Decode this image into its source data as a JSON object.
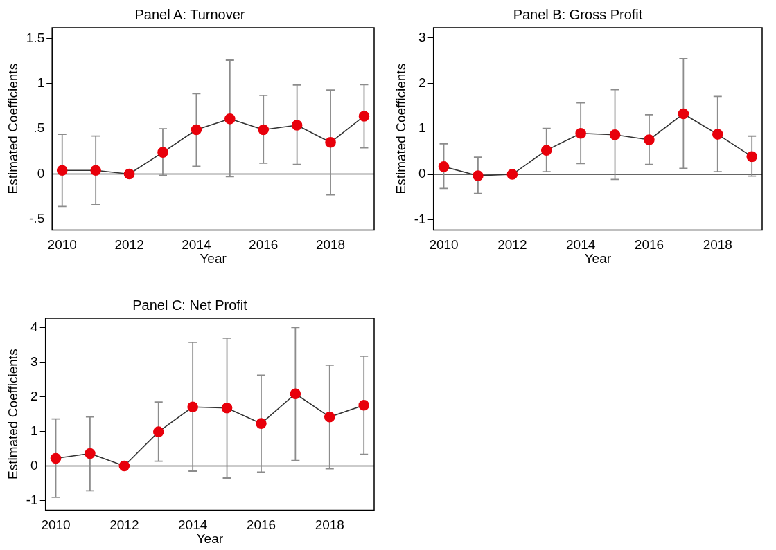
{
  "chart_data": [
    {
      "type": "line",
      "title": "Panel A: Turnover",
      "xlabel": "Year",
      "ylabel": "Estimated Coefficients",
      "x": [
        2010,
        2011,
        2012,
        2013,
        2014,
        2015,
        2016,
        2017,
        2018,
        2019
      ],
      "series": [
        {
          "color": "#e8000b",
          "values": [
            0.04,
            0.04,
            0,
            0.24,
            0.49,
            0.61,
            0.49,
            0.54,
            0.35,
            0.64
          ],
          "errors": [
            [
              -0.36,
              0.44
            ],
            [
              -0.34,
              0.42
            ],
            null,
            [
              -0.015,
              0.5
            ],
            [
              0.085,
              0.89
            ],
            [
              -0.03,
              1.26
            ],
            [
              0.12,
              0.87
            ],
            [
              0.105,
              0.985
            ],
            [
              -0.23,
              0.93
            ],
            [
              0.29,
              0.99
            ]
          ]
        }
      ],
      "marker": "circle",
      "line_style": "solid",
      "grid": false,
      "legend": false,
      "xlim": [
        2009.7,
        2019.3
      ],
      "xticks": [
        2010,
        2012,
        2014,
        2016,
        2018
      ],
      "ylim": [
        -0.62,
        1.62
      ],
      "yticks": [
        {
          "value": -0.5,
          "label": "-.5"
        },
        0,
        {
          "value": 0.5,
          "label": ".5"
        },
        1,
        1.5
      ],
      "ref_lines": [
        {
          "axis": "y",
          "value": 0,
          "color": "#333333"
        }
      ]
    },
    {
      "type": "line",
      "title": "Panel B: Gross Profit",
      "xlabel": "Year",
      "ylabel": "Estimated Coefficients",
      "x": [
        2010,
        2011,
        2012,
        2013,
        2014,
        2015,
        2016,
        2017,
        2018,
        2019
      ],
      "series": [
        {
          "color": "#e8000b",
          "values": [
            0.17,
            -0.03,
            0,
            0.53,
            0.9,
            0.87,
            0.76,
            1.33,
            0.88,
            0.39
          ],
          "errors": [
            [
              -0.31,
              0.67
            ],
            [
              -0.42,
              0.38
            ],
            null,
            [
              0.06,
              1.01
            ],
            [
              0.24,
              1.57
            ],
            [
              -0.11,
              1.86
            ],
            [
              0.22,
              1.31
            ],
            [
              0.13,
              2.54
            ],
            [
              0.06,
              1.71
            ],
            [
              -0.04,
              0.84
            ]
          ]
        }
      ],
      "marker": "circle",
      "line_style": "solid",
      "grid": false,
      "legend": false,
      "xlim": [
        2009.7,
        2019.3
      ],
      "xticks": [
        2010,
        2012,
        2014,
        2016,
        2018
      ],
      "ylim": [
        -1.22,
        3.22
      ],
      "yticks": [
        -1,
        0,
        1,
        2,
        3
      ],
      "ref_lines": [
        {
          "axis": "y",
          "value": 0,
          "color": "#333333"
        }
      ]
    },
    {
      "type": "line",
      "title": "Panel C: Net Profit",
      "xlabel": "Year",
      "ylabel": "Estimated Coefficients",
      "x": [
        2010,
        2011,
        2012,
        2013,
        2014,
        2015,
        2016,
        2017,
        2018,
        2019
      ],
      "series": [
        {
          "color": "#e8000b",
          "values": [
            0.22,
            0.36,
            0,
            0.99,
            1.71,
            1.68,
            1.23,
            2.09,
            1.42,
            1.76
          ],
          "errors": [
            [
              -0.91,
              1.36
            ],
            [
              -0.72,
              1.42
            ],
            null,
            [
              0.14,
              1.85
            ],
            [
              -0.15,
              3.58
            ],
            [
              -0.35,
              3.7
            ],
            [
              -0.18,
              2.63
            ],
            [
              0.16,
              4.01
            ],
            [
              -0.08,
              2.92
            ],
            [
              0.34,
              3.18
            ]
          ]
        }
      ],
      "marker": "circle",
      "line_style": "solid",
      "grid": false,
      "legend": false,
      "xlim": [
        2009.7,
        2019.3
      ],
      "xticks": [
        2010,
        2012,
        2014,
        2016,
        2018
      ],
      "ylim": [
        -1.28,
        4.28
      ],
      "yticks": [
        -1,
        0,
        1,
        2,
        3,
        4
      ],
      "ref_lines": [
        {
          "axis": "y",
          "value": 0,
          "color": "#333333"
        }
      ]
    }
  ]
}
